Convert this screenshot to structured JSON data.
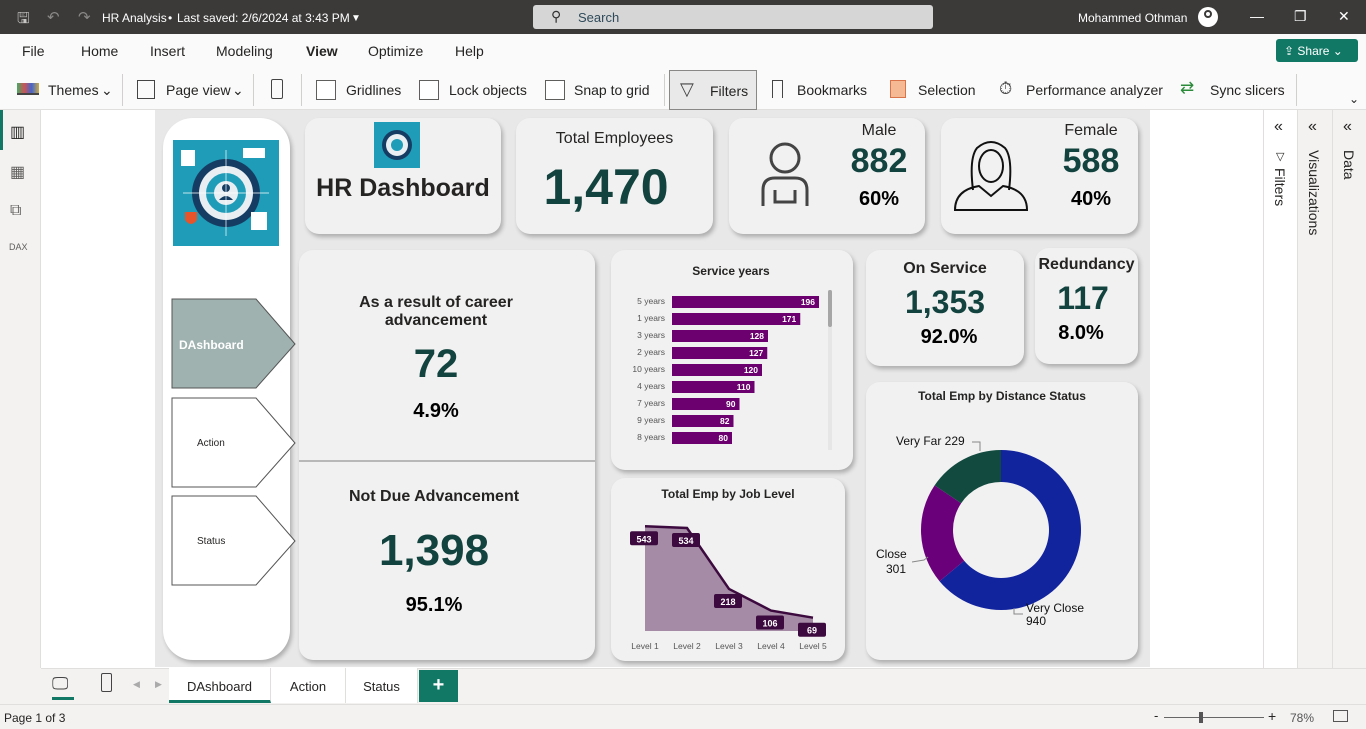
{
  "titlebar": {
    "doc_title": "HR Analysis",
    "saved": "Last saved: 2/6/2024 at 3:43 PM",
    "search_placeholder": "Search",
    "user": "Mohammed Othman"
  },
  "menu": [
    "File",
    "Home",
    "Insert",
    "Modeling",
    "View",
    "Optimize",
    "Help"
  ],
  "share_label": "Share",
  "ribbon": {
    "themes": "Themes",
    "page_view": "Page view",
    "gridlines": "Gridlines",
    "lock_objects": "Lock objects",
    "snap_to_grid": "Snap to grid",
    "filters": "Filters",
    "bookmarks": "Bookmarks",
    "selection": "Selection",
    "performance": "Performance analyzer",
    "sync_slicers": "Sync slicers"
  },
  "panes": {
    "filters": "Filters",
    "visualizations": "Visualizations",
    "data": "Data"
  },
  "nav": {
    "dashboard": "DAshboard",
    "action": "Action",
    "status": "Status"
  },
  "header": {
    "title": "HR Dashboard"
  },
  "kpis": {
    "total": {
      "label": "Total Employees",
      "value": "1,470"
    },
    "male": {
      "label": "Male",
      "value": "882",
      "pct": "60%"
    },
    "female": {
      "label": "Female",
      "value": "588",
      "pct": "40%"
    },
    "career": {
      "label": "As a result of career advancement",
      "value": "72",
      "pct": "4.9%"
    },
    "notdue": {
      "label": "Not Due Advancement",
      "value": "1,398",
      "pct": "95.1%"
    },
    "onservice": {
      "label": "On Service",
      "value": "1,353",
      "pct": "92.0%"
    },
    "redundancy": {
      "label": "Redundancy",
      "value": "117",
      "pct": "8.0%"
    }
  },
  "chart_data": [
    {
      "type": "bar",
      "title": "Service years",
      "categories": [
        "5 years",
        "1 years",
        "3 years",
        "2 years",
        "10 years",
        "4 years",
        "7 years",
        "9 years",
        "8 years"
      ],
      "values": [
        196,
        171,
        128,
        127,
        120,
        110,
        90,
        82,
        80
      ],
      "color": "#6b006e"
    },
    {
      "type": "area",
      "title": "Total Emp by Job Level",
      "categories": [
        "Level 1",
        "Level 2",
        "Level 3",
        "Level 4",
        "Level 5"
      ],
      "values": [
        543,
        534,
        218,
        106,
        69
      ],
      "color": "#a58ba6",
      "line_color": "#3d0a3f"
    },
    {
      "type": "pie",
      "title": "Total Emp by Distance Status",
      "slices": [
        {
          "label": "Very Close",
          "value": 940,
          "color": "#12239e"
        },
        {
          "label": "Close",
          "value": 301,
          "color": "#6b007b"
        },
        {
          "label": "Very Far",
          "value": 229,
          "color": "#124a40"
        }
      ]
    }
  ],
  "pages": [
    {
      "label": "DAshboard",
      "active": true
    },
    {
      "label": "Action",
      "active": false
    },
    {
      "label": "Status",
      "active": false
    }
  ],
  "status": {
    "page": "Page 1 of 3",
    "zoom": "78%"
  }
}
